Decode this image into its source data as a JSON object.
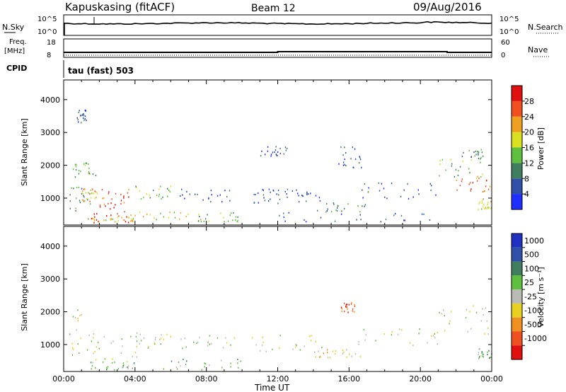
{
  "header": {
    "site": "Kapuskasing (fitACF)",
    "beam": "Beam 12",
    "date": "09/Aug/2016"
  },
  "top_panels": {
    "nsky": {
      "label": "N.Sky",
      "ticks": [
        "10^5",
        "10^0"
      ]
    },
    "nsearch": {
      "label": "N.Search",
      "ticks": [
        "10^5",
        "10^0"
      ]
    },
    "freq": {
      "label_line1": "Freq.",
      "label_line2": "[MHz]",
      "ticks": [
        "18",
        "8"
      ]
    },
    "nave": {
      "label": "Nave",
      "ticks": [
        "60",
        "0"
      ]
    },
    "cpid": {
      "label": "CPID",
      "value_text": "tau (fast) 503"
    }
  },
  "colors": {
    "power": [
      "#1f2fff",
      "#2f4fa8",
      "#3f7f5f",
      "#5fbf3f",
      "#d8e020",
      "#f0a020",
      "#f05020",
      "#e01010"
    ],
    "velocity": [
      "#e01010",
      "#f05020",
      "#f09020",
      "#e8d020",
      "#bbbbb5",
      "#5fbf3f",
      "#3f7f5f",
      "#2f4fa8",
      "#2030c0"
    ],
    "ground": "#bbbbb5"
  },
  "chart_data": [
    {
      "type": "heatmap",
      "name": "power-panel",
      "ylabel": "Slant Range [km]",
      "ylim": [
        180,
        4600
      ],
      "yticks": [
        "1000",
        "2000",
        "3000",
        "4000"
      ],
      "xlim_hours": [
        0,
        24
      ],
      "colorbar": {
        "title": "Power [dB]",
        "ticks": [
          "4",
          "8",
          "12",
          "16",
          "20",
          "24",
          "28"
        ],
        "range": [
          0,
          32
        ]
      },
      "regions": [
        {
          "t": [
            0.5,
            1.8
          ],
          "r": [
            1600,
            2100
          ],
          "level": 3
        },
        {
          "t": [
            0.3,
            1.6
          ],
          "r": [
            600,
            1400
          ],
          "level": 2
        },
        {
          "t": [
            0.7,
            1.3
          ],
          "r": [
            3300,
            3800
          ],
          "level": 1
        },
        {
          "t": [
            1.0,
            2.0
          ],
          "r": [
            900,
            1300
          ],
          "level": 5
        },
        {
          "t": [
            1.5,
            3.8
          ],
          "r": [
            250,
            800
          ],
          "level": 7
        },
        {
          "t": [
            1.7,
            3.7
          ],
          "r": [
            800,
            1300
          ],
          "level": 6
        },
        {
          "t": [
            1.3,
            4.2
          ],
          "r": [
            300,
            450
          ],
          "level": 4
        },
        {
          "t": [
            4.0,
            6.0
          ],
          "r": [
            900,
            1400
          ],
          "level": 3
        },
        {
          "t": [
            3.5,
            8.0
          ],
          "r": [
            300,
            600
          ],
          "level": 4
        },
        {
          "t": [
            6.5,
            9.8
          ],
          "r": [
            900,
            1300
          ],
          "level": 1
        },
        {
          "t": [
            7.5,
            10.0
          ],
          "r": [
            300,
            600
          ],
          "level": 3
        },
        {
          "t": [
            10.2,
            12.5
          ],
          "r": [
            800,
            1300
          ],
          "level": 1
        },
        {
          "t": [
            11.0,
            12.5
          ],
          "r": [
            2300,
            2600
          ],
          "level": 1
        },
        {
          "t": [
            12.0,
            14.5
          ],
          "r": [
            900,
            1300
          ],
          "level": 1
        },
        {
          "t": [
            14.0,
            17.0
          ],
          "r": [
            600,
            900
          ],
          "level": 2
        },
        {
          "t": [
            15.0,
            16.8
          ],
          "r": [
            1900,
            2600
          ],
          "level": 1
        },
        {
          "t": [
            16.5,
            21.0
          ],
          "r": [
            1000,
            1500
          ],
          "level": 1
        },
        {
          "t": [
            12.0,
            21.0
          ],
          "r": [
            300,
            600
          ],
          "level": 1
        },
        {
          "t": [
            21.0,
            23.5
          ],
          "r": [
            1600,
            2200
          ],
          "level": 3
        },
        {
          "t": [
            22.0,
            23.9
          ],
          "r": [
            1200,
            1700
          ],
          "level": 6
        },
        {
          "t": [
            22.3,
            23.5
          ],
          "r": [
            2200,
            2500
          ],
          "level": 2
        },
        {
          "t": [
            23.2,
            24.0
          ],
          "r": [
            600,
            1000
          ],
          "level": 4
        }
      ]
    },
    {
      "type": "heatmap",
      "name": "velocity-panel",
      "ylabel": "Slant Range [km]",
      "ylim": [
        180,
        4600
      ],
      "yticks": [
        "1000",
        "2000",
        "3000",
        "4000"
      ],
      "xlim_hours": [
        0,
        24
      ],
      "xticks": [
        "00:00",
        "04:00",
        "08:00",
        "12:00",
        "16:00",
        "20:00",
        "00:00"
      ],
      "xlabel": "Time UT",
      "colorbar": {
        "title": "Velocity [m s⁻¹]",
        "ticks": [
          "1000",
          "500",
          "100",
          "25",
          "-25",
          "-100",
          "-500",
          "-1000"
        ]
      },
      "regions": [
        {
          "t": [
            0.3,
            1.8
          ],
          "r": [
            700,
            2100
          ],
          "level": 4
        },
        {
          "t": [
            1.5,
            4.2
          ],
          "r": [
            300,
            1300
          ],
          "level": 4
        },
        {
          "t": [
            1.5,
            4.0
          ],
          "r": [
            250,
            500
          ],
          "level": 5
        },
        {
          "t": [
            4.0,
            6.0
          ],
          "r": [
            900,
            1400
          ],
          "level": 4
        },
        {
          "t": [
            5.5,
            10.0
          ],
          "r": [
            250,
            600
          ],
          "level": 5
        },
        {
          "t": [
            6.5,
            9.8
          ],
          "r": [
            900,
            1300
          ],
          "level": 4
        },
        {
          "t": [
            10.2,
            14.5
          ],
          "r": [
            800,
            1300
          ],
          "level": 4
        },
        {
          "t": [
            14.0,
            17.0
          ],
          "r": [
            600,
            900
          ],
          "level": 3
        },
        {
          "t": [
            15.5,
            16.3
          ],
          "r": [
            2000,
            2300
          ],
          "level": 1
        },
        {
          "t": [
            16.5,
            21.0
          ],
          "r": [
            1000,
            1500
          ],
          "level": 4
        },
        {
          "t": [
            21.0,
            23.9
          ],
          "r": [
            1200,
            2200
          ],
          "level": 4
        },
        {
          "t": [
            23.2,
            24.0
          ],
          "r": [
            600,
            900
          ],
          "level": 5
        }
      ]
    }
  ]
}
